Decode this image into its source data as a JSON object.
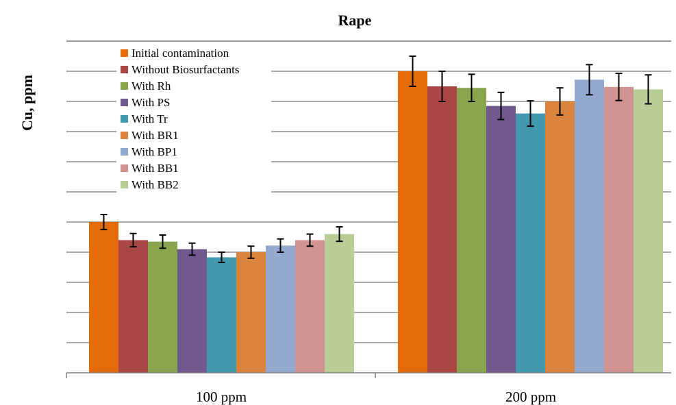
{
  "chart_data": {
    "type": "bar",
    "title": "Rape",
    "xlabel": "",
    "ylabel": "Cu, ppm",
    "categories": [
      "100 ppm",
      "200 ppm"
    ],
    "ylim": [
      0,
      10
    ],
    "y_gridlines": 10,
    "y_tick_labels_shown": false,
    "grid": true,
    "legend": "top-left",
    "series": [
      {
        "name": "Initial contamination",
        "color": "#E36C09",
        "values": [
          5.0,
          10.0
        ],
        "errors": [
          0.25,
          0.5
        ]
      },
      {
        "name": "Without Biosurfactants",
        "color": "#AA4643",
        "values": [
          4.4,
          9.5
        ],
        "errors": [
          0.22,
          0.5
        ]
      },
      {
        "name": "With Rh",
        "color": "#89A54E",
        "values": [
          4.35,
          9.45
        ],
        "errors": [
          0.22,
          0.45
        ]
      },
      {
        "name": "With PS",
        "color": "#71588F",
        "values": [
          4.1,
          8.85
        ],
        "errors": [
          0.2,
          0.45
        ]
      },
      {
        "name": "With Tr",
        "color": "#4198AF",
        "values": [
          3.83,
          8.6
        ],
        "errors": [
          0.17,
          0.42
        ]
      },
      {
        "name": "With BR1",
        "color": "#DB843D",
        "values": [
          4.0,
          9.0
        ],
        "errors": [
          0.2,
          0.45
        ]
      },
      {
        "name": "With BP1",
        "color": "#93A9CF",
        "values": [
          4.22,
          9.72
        ],
        "errors": [
          0.22,
          0.5
        ]
      },
      {
        "name": "With BB1",
        "color": "#D19392",
        "values": [
          4.4,
          9.48
        ],
        "errors": [
          0.2,
          0.45
        ]
      },
      {
        "name": "With BB2",
        "color": "#B9CD96",
        "values": [
          4.6,
          9.4
        ],
        "errors": [
          0.24,
          0.48
        ]
      }
    ]
  }
}
